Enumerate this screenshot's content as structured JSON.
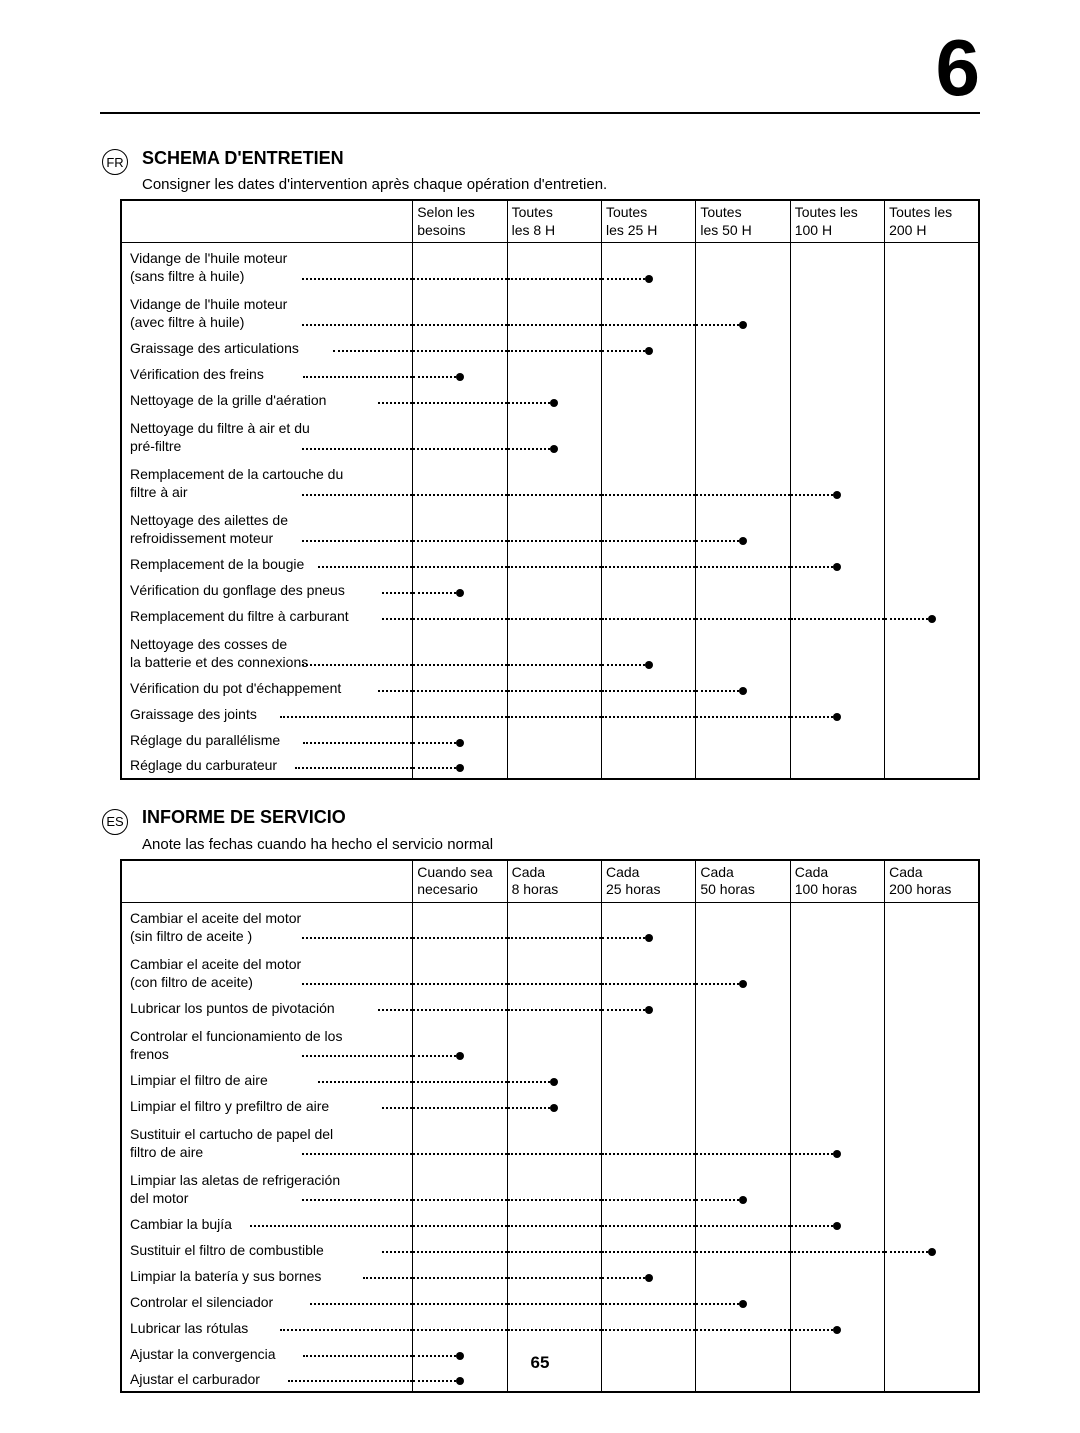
{
  "chapter_number": "6",
  "page_number": "65",
  "sections": [
    {
      "lang_code": "FR",
      "title": "SCHEMA D'ENTRETIEN",
      "subtitle": "Consigner les dates d'intervention après chaque opération d'entretien.",
      "columns": [
        {
          "line1": "Selon les",
          "line2": "besoins"
        },
        {
          "line1": "Toutes",
          "line2": "les 8 H"
        },
        {
          "line1": "Toutes",
          "line2": "les 25 H"
        },
        {
          "line1": "Toutes",
          "line2": "les 50 H"
        },
        {
          "line1": "Toutes les",
          "line2": "100 H"
        },
        {
          "line1": "Toutes les",
          "line2": "200 H"
        }
      ],
      "rows": [
        {
          "main": "Vidange de l'huile moteur",
          "sub": "(sans filtre à huile)",
          "tall": true,
          "mark": 3,
          "fill_to": 3
        },
        {
          "main": "Vidange de l'huile moteur",
          "sub": "(avec filtre à huile)",
          "tall": true,
          "mark": 4,
          "fill_to": 4
        },
        {
          "main": "Graissage des articulations",
          "mark": 3,
          "fill_to": 3
        },
        {
          "main": "Vérification des freins",
          "mark": 1,
          "fill_to": 1
        },
        {
          "main": "Nettoyage de la grille d'aération",
          "mark": 2,
          "fill_to": 2
        },
        {
          "main": "Nettoyage du filtre à air et du",
          "sub": "pré-filtre",
          "tall": true,
          "mark": 2,
          "fill_to": 2
        },
        {
          "main": "Remplacement de la cartouche du",
          "sub": "filtre à air",
          "tall": true,
          "mark": 5,
          "fill_to": 5
        },
        {
          "main": "Nettoyage des ailettes de",
          "sub": "refroidissement moteur",
          "tall": true,
          "mark": 4,
          "fill_to": 4
        },
        {
          "main": "Remplacement de la bougie",
          "mark": 5,
          "fill_to": 5
        },
        {
          "main": "Vérification du gonflage des pneus",
          "mark": 1,
          "fill_to": 1
        },
        {
          "main": "Remplacement du filtre à carburant",
          "mark": 6,
          "fill_to": 6
        },
        {
          "main": "Nettoyage des cosses de",
          "sub": "la batterie et des connexions",
          "tall": true,
          "mark": 3,
          "fill_to": 3
        },
        {
          "main": "Vérification du pot d'échappement",
          "mark": 4,
          "fill_to": 4
        },
        {
          "main": "Graissage des joints",
          "mark": 5,
          "fill_to": 5
        },
        {
          "main": "Réglage du parallélisme",
          "mark": 1,
          "fill_to": 1
        },
        {
          "main": "Réglage du carburateur",
          "mark": 1,
          "fill_to": 1
        }
      ]
    },
    {
      "lang_code": "ES",
      "title": "INFORME DE SERVICIO",
      "subtitle": "Anote las fechas cuando ha hecho el servicio normal",
      "columns": [
        {
          "line1": "Cuando sea",
          "line2": "necesario"
        },
        {
          "line1": "Cada",
          "line2": "8 horas"
        },
        {
          "line1": "Cada",
          "line2": "25 horas"
        },
        {
          "line1": "Cada",
          "line2": "50 horas"
        },
        {
          "line1": "Cada",
          "line2": "100 horas"
        },
        {
          "line1": "Cada",
          "line2": "200 horas"
        }
      ],
      "rows": [
        {
          "main": "Cambiar el aceite del motor",
          "sub": "(sin filtro de aceite )",
          "tall": true,
          "mark": 3,
          "fill_to": 3
        },
        {
          "main": "Cambiar el aceite del motor",
          "sub": "(con filtro de aceite)",
          "tall": true,
          "mark": 4,
          "fill_to": 4
        },
        {
          "main": "Lubricar los puntos de pivotación",
          "mark": 3,
          "fill_to": 3
        },
        {
          "main": "Controlar el funcionamiento de los",
          "sub": "frenos",
          "tall": true,
          "mark": 1,
          "fill_to": 1
        },
        {
          "main": "Limpiar el filtro de aire",
          "mark": 2,
          "fill_to": 2
        },
        {
          "main": "Limpiar el filtro y prefiltro de aire",
          "mark": 2,
          "fill_to": 2
        },
        {
          "main": "Sustituir el cartucho de papel del",
          "sub": "filtro de aire",
          "tall": true,
          "mark": 5,
          "fill_to": 5
        },
        {
          "main": "Limpiar las aletas de refrigeración",
          "sub": "del motor",
          "tall": true,
          "mark": 4,
          "fill_to": 4
        },
        {
          "main": "Cambiar la bujía",
          "mark": 5,
          "fill_to": 5
        },
        {
          "main": "Sustituir el filtro de combustible",
          "mark": 6,
          "fill_to": 6
        },
        {
          "main": "Limpiar la batería y sus bornes",
          "mark": 3,
          "fill_to": 3
        },
        {
          "main": "Controlar el silenciador",
          "mark": 4,
          "fill_to": 4
        },
        {
          "main": "Lubricar las rótulas",
          "mark": 5,
          "fill_to": 5
        },
        {
          "main": "Ajustar la convergencia",
          "mark": 1,
          "fill_to": 1
        },
        {
          "main": "Ajustar el carburador",
          "mark": 1,
          "fill_to": 1
        }
      ]
    }
  ]
}
